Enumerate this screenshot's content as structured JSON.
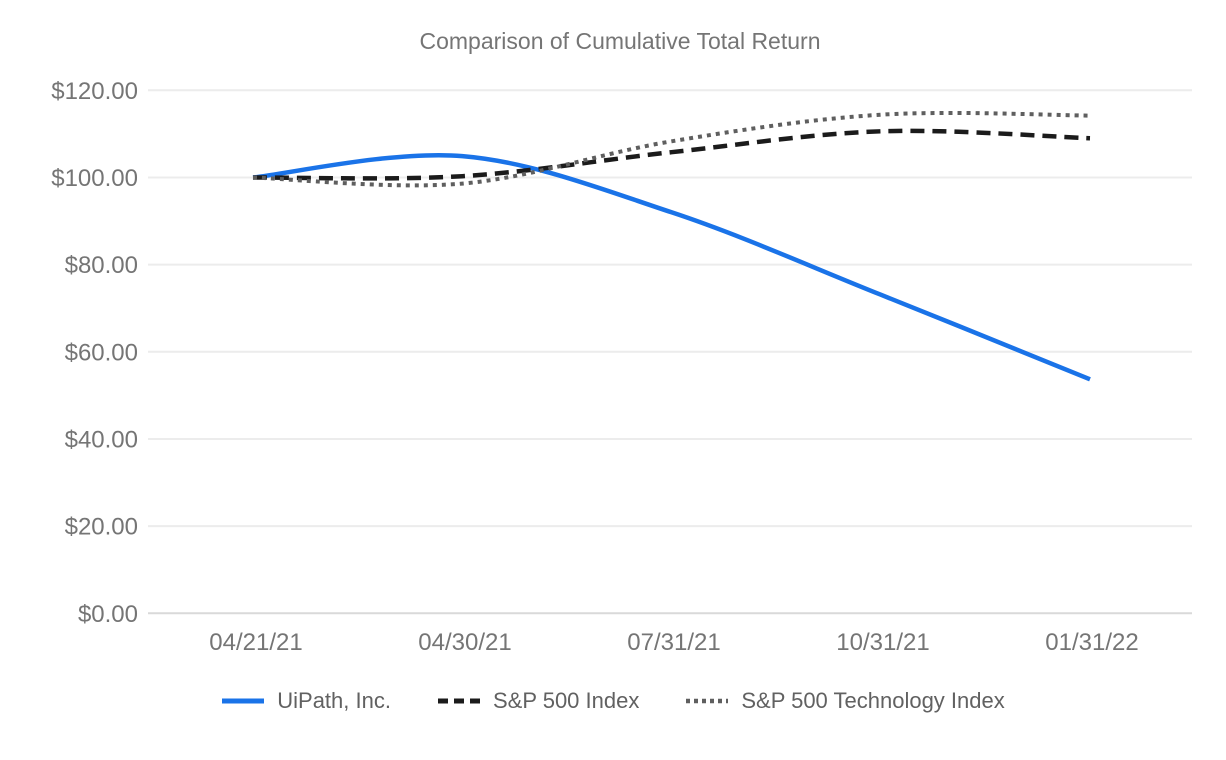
{
  "chart_data": {
    "type": "line",
    "title": "Comparison of Cumulative Total Return",
    "xlabel": "",
    "ylabel": "",
    "x": [
      "04/21/21",
      "04/30/21",
      "07/31/21",
      "10/31/21",
      "01/31/22"
    ],
    "series": [
      {
        "name": "UiPath, Inc.",
        "values": [
          100.0,
          104.9,
          92.0,
          73.1,
          53.7
        ],
        "color": "#1a73e8",
        "style": "solid"
      },
      {
        "name": "S&P 500 Index",
        "values": [
          100.0,
          100.3,
          105.8,
          110.6,
          109.0
        ],
        "color": "#1b1b1b",
        "style": "dashed"
      },
      {
        "name": "S&P 500 Technology Index",
        "values": [
          100.0,
          98.6,
          108.3,
          114.4,
          114.2
        ],
        "color": "#5f5f5f",
        "style": "dotted"
      }
    ],
    "y_ticks": [
      "$120.00",
      "$100.00",
      "$80.00",
      "$60.00",
      "$40.00",
      "$20.00",
      "$0.00"
    ],
    "y_tick_values": [
      120,
      100,
      80,
      60,
      40,
      20,
      0
    ],
    "ylim": [
      0,
      120
    ],
    "value_format": "USD",
    "grid": true,
    "line_smoothing": true,
    "legend_position": "bottom"
  },
  "colors": {
    "background": "#ffffff",
    "title_text": "#757575",
    "axis_text": "#757575",
    "legend_text": "#616161",
    "gridline": "#ececec",
    "axis_line": "#d9d9d9",
    "series_uipath": "#1a73e8",
    "series_sp500": "#1b1b1b",
    "series_sp500_tech": "#5f5f5f"
  }
}
